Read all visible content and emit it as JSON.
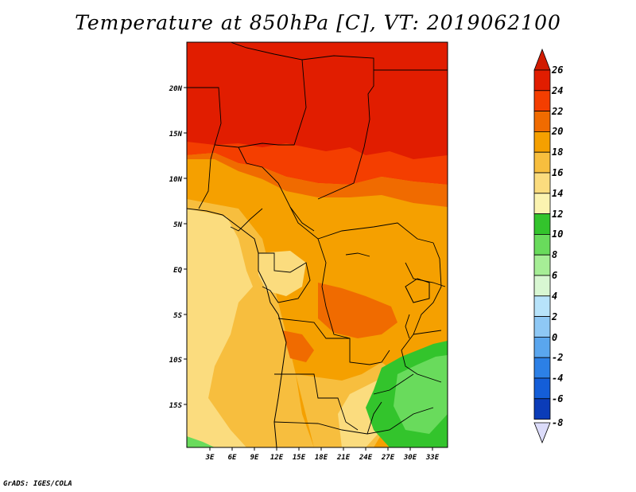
{
  "title": "Temperature at 850hPa [C], VT: 2019062100",
  "credit": "GrADS: IGES/COLA",
  "map": {
    "lat_labels": [
      "20N",
      "15N",
      "10N",
      "5N",
      "EQ",
      "5S",
      "10S",
      "15S"
    ],
    "lon_labels": [
      "3E",
      "6E",
      "9E",
      "12E",
      "15E",
      "18E",
      "21E",
      "24E",
      "27E",
      "30E",
      "33E"
    ]
  },
  "colorbar": {
    "labels": [
      "26",
      "24",
      "22",
      "20",
      "18",
      "16",
      "14",
      "12",
      "10",
      "8",
      "6",
      "4",
      "2",
      "0",
      "-2",
      "-4",
      "-6",
      "-8"
    ],
    "colors": {
      "over": "#d11b00",
      "b24_26": "#e11d00",
      "b22_24": "#f43e00",
      "b20_22": "#f06b00",
      "b18_20": "#f5a000",
      "b16_18": "#f7be3e",
      "b14_16": "#fbdc7e",
      "b12_14": "#fbf3b0",
      "b10_12": "#33c42c",
      "b8_10": "#69db5c",
      "b6_8": "#a6ee96",
      "b4_6": "#d8f7d2",
      "b2_4": "#b7e3fa",
      "b0_2": "#8ec8f5",
      "bm2_0": "#5aa6ee",
      "bm4_m2": "#2c80e6",
      "bm6_m4": "#145ed8",
      "bm8_m6": "#0b3cb8",
      "under": "#051a6e",
      "under_tip": "#dcdcfa"
    }
  }
}
